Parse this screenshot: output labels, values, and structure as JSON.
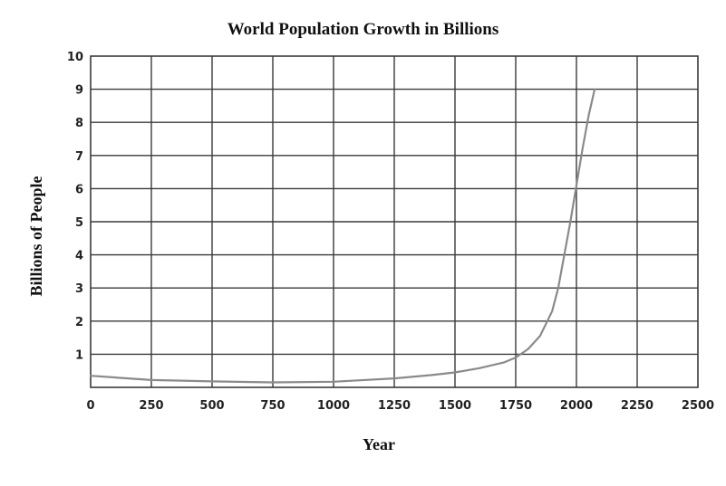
{
  "chart_data": {
    "type": "line",
    "title": "World Population Growth in Billions",
    "xlabel": "Year",
    "ylabel": "Billions of People",
    "xlim": [
      0,
      2500
    ],
    "ylim": [
      0,
      10
    ],
    "x_ticks": [
      0,
      250,
      500,
      750,
      1000,
      1250,
      1500,
      1750,
      2000,
      2250,
      2500
    ],
    "y_ticks": [
      1,
      2,
      3,
      4,
      5,
      6,
      7,
      8,
      9,
      10
    ],
    "grid": true,
    "legend": "none",
    "series": [
      {
        "color": "#8a8a8a",
        "x": [
          0,
          250,
          500,
          750,
          1000,
          1250,
          1400,
          1500,
          1600,
          1700,
          1750,
          1800,
          1850,
          1900,
          1925,
          1950,
          1975,
          2000,
          2025,
          2050,
          2075
        ],
        "y": [
          0.35,
          0.22,
          0.18,
          0.15,
          0.17,
          0.27,
          0.37,
          0.45,
          0.58,
          0.75,
          0.9,
          1.15,
          1.55,
          2.3,
          3.0,
          4.0,
          5.0,
          6.1,
          7.2,
          8.2,
          9.0
        ]
      }
    ]
  }
}
